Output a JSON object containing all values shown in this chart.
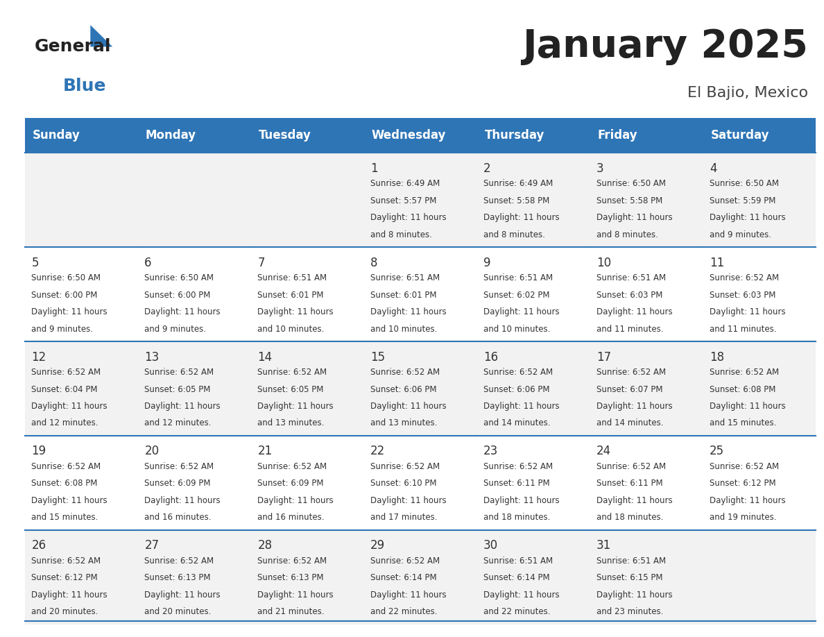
{
  "title": "January 2025",
  "subtitle": "El Bajio, Mexico",
  "days_of_week": [
    "Sunday",
    "Monday",
    "Tuesday",
    "Wednesday",
    "Thursday",
    "Friday",
    "Saturday"
  ],
  "header_bg": "#2E75B6",
  "header_text_color": "#FFFFFF",
  "cell_bg_even": "#F2F2F2",
  "cell_bg_odd": "#FFFFFF",
  "cell_text_color": "#333333",
  "day_num_color": "#333333",
  "grid_line_color": "#2E75B6",
  "title_color": "#222222",
  "subtitle_color": "#444444",
  "logo_general_color": "#222222",
  "logo_blue_color": "#2E75B6",
  "calendar_data": [
    [
      null,
      null,
      null,
      {
        "day": 1,
        "sunrise": "6:49 AM",
        "sunset": "5:57 PM",
        "daylight_line1": "11 hours",
        "daylight_line2": "and 8 minutes."
      },
      {
        "day": 2,
        "sunrise": "6:49 AM",
        "sunset": "5:58 PM",
        "daylight_line1": "11 hours",
        "daylight_line2": "and 8 minutes."
      },
      {
        "day": 3,
        "sunrise": "6:50 AM",
        "sunset": "5:58 PM",
        "daylight_line1": "11 hours",
        "daylight_line2": "and 8 minutes."
      },
      {
        "day": 4,
        "sunrise": "6:50 AM",
        "sunset": "5:59 PM",
        "daylight_line1": "11 hours",
        "daylight_line2": "and 9 minutes."
      }
    ],
    [
      {
        "day": 5,
        "sunrise": "6:50 AM",
        "sunset": "6:00 PM",
        "daylight_line1": "11 hours",
        "daylight_line2": "and 9 minutes."
      },
      {
        "day": 6,
        "sunrise": "6:50 AM",
        "sunset": "6:00 PM",
        "daylight_line1": "11 hours",
        "daylight_line2": "and 9 minutes."
      },
      {
        "day": 7,
        "sunrise": "6:51 AM",
        "sunset": "6:01 PM",
        "daylight_line1": "11 hours",
        "daylight_line2": "and 10 minutes."
      },
      {
        "day": 8,
        "sunrise": "6:51 AM",
        "sunset": "6:01 PM",
        "daylight_line1": "11 hours",
        "daylight_line2": "and 10 minutes."
      },
      {
        "day": 9,
        "sunrise": "6:51 AM",
        "sunset": "6:02 PM",
        "daylight_line1": "11 hours",
        "daylight_line2": "and 10 minutes."
      },
      {
        "day": 10,
        "sunrise": "6:51 AM",
        "sunset": "6:03 PM",
        "daylight_line1": "11 hours",
        "daylight_line2": "and 11 minutes."
      },
      {
        "day": 11,
        "sunrise": "6:52 AM",
        "sunset": "6:03 PM",
        "daylight_line1": "11 hours",
        "daylight_line2": "and 11 minutes."
      }
    ],
    [
      {
        "day": 12,
        "sunrise": "6:52 AM",
        "sunset": "6:04 PM",
        "daylight_line1": "11 hours",
        "daylight_line2": "and 12 minutes."
      },
      {
        "day": 13,
        "sunrise": "6:52 AM",
        "sunset": "6:05 PM",
        "daylight_line1": "11 hours",
        "daylight_line2": "and 12 minutes."
      },
      {
        "day": 14,
        "sunrise": "6:52 AM",
        "sunset": "6:05 PM",
        "daylight_line1": "11 hours",
        "daylight_line2": "and 13 minutes."
      },
      {
        "day": 15,
        "sunrise": "6:52 AM",
        "sunset": "6:06 PM",
        "daylight_line1": "11 hours",
        "daylight_line2": "and 13 minutes."
      },
      {
        "day": 16,
        "sunrise": "6:52 AM",
        "sunset": "6:06 PM",
        "daylight_line1": "11 hours",
        "daylight_line2": "and 14 minutes."
      },
      {
        "day": 17,
        "sunrise": "6:52 AM",
        "sunset": "6:07 PM",
        "daylight_line1": "11 hours",
        "daylight_line2": "and 14 minutes."
      },
      {
        "day": 18,
        "sunrise": "6:52 AM",
        "sunset": "6:08 PM",
        "daylight_line1": "11 hours",
        "daylight_line2": "and 15 minutes."
      }
    ],
    [
      {
        "day": 19,
        "sunrise": "6:52 AM",
        "sunset": "6:08 PM",
        "daylight_line1": "11 hours",
        "daylight_line2": "and 15 minutes."
      },
      {
        "day": 20,
        "sunrise": "6:52 AM",
        "sunset": "6:09 PM",
        "daylight_line1": "11 hours",
        "daylight_line2": "and 16 minutes."
      },
      {
        "day": 21,
        "sunrise": "6:52 AM",
        "sunset": "6:09 PM",
        "daylight_line1": "11 hours",
        "daylight_line2": "and 16 minutes."
      },
      {
        "day": 22,
        "sunrise": "6:52 AM",
        "sunset": "6:10 PM",
        "daylight_line1": "11 hours",
        "daylight_line2": "and 17 minutes."
      },
      {
        "day": 23,
        "sunrise": "6:52 AM",
        "sunset": "6:11 PM",
        "daylight_line1": "11 hours",
        "daylight_line2": "and 18 minutes."
      },
      {
        "day": 24,
        "sunrise": "6:52 AM",
        "sunset": "6:11 PM",
        "daylight_line1": "11 hours",
        "daylight_line2": "and 18 minutes."
      },
      {
        "day": 25,
        "sunrise": "6:52 AM",
        "sunset": "6:12 PM",
        "daylight_line1": "11 hours",
        "daylight_line2": "and 19 minutes."
      }
    ],
    [
      {
        "day": 26,
        "sunrise": "6:52 AM",
        "sunset": "6:12 PM",
        "daylight_line1": "11 hours",
        "daylight_line2": "and 20 minutes."
      },
      {
        "day": 27,
        "sunrise": "6:52 AM",
        "sunset": "6:13 PM",
        "daylight_line1": "11 hours",
        "daylight_line2": "and 20 minutes."
      },
      {
        "day": 28,
        "sunrise": "6:52 AM",
        "sunset": "6:13 PM",
        "daylight_line1": "11 hours",
        "daylight_line2": "and 21 minutes."
      },
      {
        "day": 29,
        "sunrise": "6:52 AM",
        "sunset": "6:14 PM",
        "daylight_line1": "11 hours",
        "daylight_line2": "and 22 minutes."
      },
      {
        "day": 30,
        "sunrise": "6:51 AM",
        "sunset": "6:14 PM",
        "daylight_line1": "11 hours",
        "daylight_line2": "and 22 minutes."
      },
      {
        "day": 31,
        "sunrise": "6:51 AM",
        "sunset": "6:15 PM",
        "daylight_line1": "11 hours",
        "daylight_line2": "and 23 minutes."
      },
      null
    ]
  ]
}
